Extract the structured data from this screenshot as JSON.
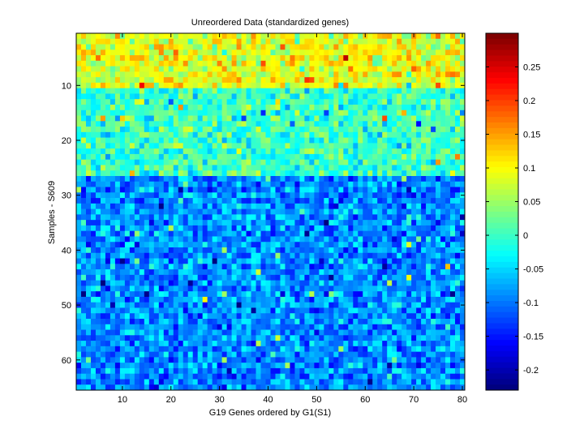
{
  "chart_data": {
    "type": "heatmap",
    "title": "Unreordered Data (standardized genes)",
    "xlabel": "G19 Genes ordered by G1(S1)",
    "ylabel": "Samples - S609",
    "n_cols": 80,
    "n_rows": 65,
    "xlim": [
      0.5,
      80.5
    ],
    "ylim": [
      0.5,
      65.5
    ],
    "y_reversed": true,
    "x_ticks": [
      10,
      20,
      30,
      40,
      50,
      60,
      70,
      80
    ],
    "y_ticks": [
      10,
      20,
      30,
      40,
      50,
      60
    ],
    "colorbar": {
      "colormap": "jet",
      "range": [
        -0.23,
        0.3
      ],
      "ticks": [
        -0.2,
        -0.15,
        -0.1,
        -0.05,
        0,
        0.05,
        0.1,
        0.15,
        0.2,
        0.25
      ]
    },
    "row_bands": [
      {
        "rows": [
          1,
          10
        ],
        "mean": 0.09,
        "note": "yellow/orange band"
      },
      {
        "rows": [
          11,
          26
        ],
        "mean": 0.0,
        "note": "cyan/green band"
      },
      {
        "rows": [
          27,
          65
        ],
        "mean": -0.09,
        "note": "blue band"
      }
    ],
    "grid": false
  }
}
